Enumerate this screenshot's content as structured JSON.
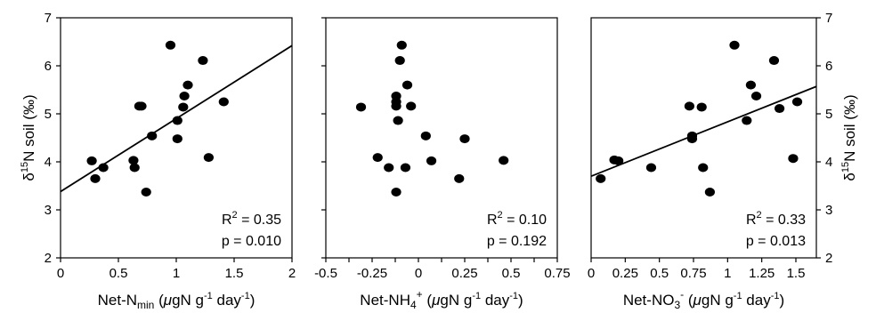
{
  "chart_data": [
    {
      "type": "scatter",
      "xlabel": "Net-N",
      "xlabel_sub": "min",
      "xlabel_unit_pre": " (",
      "xlabel_mu": "μ",
      "xlabel_unit_mid": "gN g",
      "xlabel_exp": "-1",
      "xlabel_unit_end": " day",
      "xlabel_exp2": "-1",
      "xlabel_close": ")",
      "ylabel": "δ¹⁵N soil (‰)",
      "ylabel_delta": "δ",
      "ylabel_sup": "15",
      "ylabel_rest": "N soil (‰)",
      "xlim": [
        0,
        2
      ],
      "ylim": [
        2,
        7
      ],
      "xticks": [
        0,
        0.5,
        1,
        1.5,
        2
      ],
      "xtick_labels": [
        "0",
        "0.5",
        "1",
        "1.5",
        "2"
      ],
      "yticks": [
        2,
        3,
        4,
        5,
        6,
        7
      ],
      "ytick_labels": [
        "2",
        "3",
        "4",
        "5",
        "6",
        "7"
      ],
      "regression": {
        "x": [
          0,
          2
        ],
        "y": [
          3.38,
          6.42
        ]
      },
      "r2_label": "R",
      "r2_sup": "2",
      "r2_value": " = 0.35",
      "p_label": "p = 0.010",
      "points": [
        {
          "x": 0.27,
          "y": 4.02
        },
        {
          "x": 0.3,
          "y": 3.65
        },
        {
          "x": 0.37,
          "y": 3.88
        },
        {
          "x": 0.63,
          "y": 4.03
        },
        {
          "x": 0.64,
          "y": 3.88
        },
        {
          "x": 0.68,
          "y": 5.16
        },
        {
          "x": 0.7,
          "y": 5.16
        },
        {
          "x": 0.74,
          "y": 3.37
        },
        {
          "x": 0.79,
          "y": 4.54
        },
        {
          "x": 0.95,
          "y": 6.43
        },
        {
          "x": 1.01,
          "y": 4.86
        },
        {
          "x": 1.01,
          "y": 4.48
        },
        {
          "x": 1.06,
          "y": 5.14
        },
        {
          "x": 1.07,
          "y": 5.37
        },
        {
          "x": 1.1,
          "y": 5.6
        },
        {
          "x": 1.23,
          "y": 6.11
        },
        {
          "x": 1.28,
          "y": 4.09
        },
        {
          "x": 1.41,
          "y": 5.25
        }
      ]
    },
    {
      "type": "scatter",
      "xlabel": "Net-NH",
      "xlabel_sub": "4",
      "xlabel_sup": "+",
      "xlabel_unit_pre": " (",
      "xlabel_mu": "μ",
      "xlabel_unit_mid": "gN g",
      "xlabel_exp": "-1",
      "xlabel_unit_end": " day",
      "xlabel_exp2": "-1",
      "xlabel_close": ")",
      "xlim": [
        -0.5,
        0.75
      ],
      "ylim": [
        2,
        7
      ],
      "xticks": [
        -0.5,
        -0.375,
        -0.25,
        -0.125,
        0,
        0.125,
        0.25,
        0.375,
        0.5,
        0.625,
        0.75
      ],
      "xtick_labels": [
        "-0.5",
        "-0.25",
        "0",
        "0.25",
        "0.5",
        "0.75"
      ],
      "xlabeled_ticks": [
        -0.5,
        -0.25,
        0,
        0.25,
        0.5,
        0.75
      ],
      "yticks": [
        2,
        3,
        4,
        5,
        6,
        7
      ],
      "r2_label": "R",
      "r2_sup": "2",
      "r2_value": " = 0.10",
      "p_label": "p = 0.192",
      "points": [
        {
          "x": -0.31,
          "y": 5.14
        },
        {
          "x": -0.22,
          "y": 4.09
        },
        {
          "x": -0.16,
          "y": 3.88
        },
        {
          "x": -0.12,
          "y": 5.37
        },
        {
          "x": -0.12,
          "y": 5.25
        },
        {
          "x": -0.12,
          "y": 5.16
        },
        {
          "x": -0.11,
          "y": 4.86
        },
        {
          "x": -0.12,
          "y": 3.37
        },
        {
          "x": -0.1,
          "y": 6.11
        },
        {
          "x": -0.09,
          "y": 6.43
        },
        {
          "x": -0.07,
          "y": 3.88
        },
        {
          "x": -0.06,
          "y": 5.6
        },
        {
          "x": -0.04,
          "y": 5.16
        },
        {
          "x": 0.04,
          "y": 4.54
        },
        {
          "x": 0.07,
          "y": 4.02
        },
        {
          "x": 0.22,
          "y": 3.65
        },
        {
          "x": 0.25,
          "y": 4.48
        },
        {
          "x": 0.46,
          "y": 4.03
        }
      ]
    },
    {
      "type": "scatter",
      "xlabel": "Net-NO",
      "xlabel_sub": "3",
      "xlabel_sup": "-",
      "xlabel_unit_pre": " (",
      "xlabel_mu": "μ",
      "xlabel_unit_mid": "gN g",
      "xlabel_exp": "-1",
      "xlabel_unit_end": " day",
      "xlabel_exp2": "-1",
      "xlabel_close": ")",
      "ylabel": "δ¹⁵N soil (‰)",
      "ylabel_delta": "δ",
      "ylabel_sup": "15",
      "ylabel_rest": "N soil (‰)",
      "xlim": [
        0,
        1.65
      ],
      "ylim": [
        2,
        7
      ],
      "xticks": [
        0,
        0.25,
        0.5,
        0.75,
        1,
        1.25,
        1.5
      ],
      "xtick_labels": [
        "0",
        "0.25",
        "0.5",
        "0.75",
        "1",
        "1.25",
        "1.5"
      ],
      "yticks": [
        2,
        3,
        4,
        5,
        6,
        7
      ],
      "ytick_labels": [
        "2",
        "3",
        "4",
        "5",
        "6",
        "7"
      ],
      "regression": {
        "x": [
          0,
          1.65
        ],
        "y": [
          3.7,
          5.57
        ]
      },
      "r2_label": "R",
      "r2_sup": "2",
      "r2_value": " = 0.33",
      "p_label": "p = 0.013",
      "points": [
        {
          "x": 0.07,
          "y": 3.65
        },
        {
          "x": 0.17,
          "y": 4.04
        },
        {
          "x": 0.2,
          "y": 4.02
        },
        {
          "x": 0.44,
          "y": 3.88
        },
        {
          "x": 0.72,
          "y": 5.16
        },
        {
          "x": 0.74,
          "y": 4.54
        },
        {
          "x": 0.74,
          "y": 4.48
        },
        {
          "x": 0.81,
          "y": 5.14
        },
        {
          "x": 0.82,
          "y": 3.88
        },
        {
          "x": 0.87,
          "y": 3.37
        },
        {
          "x": 1.05,
          "y": 6.43
        },
        {
          "x": 1.14,
          "y": 4.86
        },
        {
          "x": 1.17,
          "y": 5.6
        },
        {
          "x": 1.21,
          "y": 5.37
        },
        {
          "x": 1.34,
          "y": 6.11
        },
        {
          "x": 1.38,
          "y": 5.11
        },
        {
          "x": 1.48,
          "y": 4.07
        },
        {
          "x": 1.51,
          "y": 5.25
        }
      ]
    }
  ]
}
